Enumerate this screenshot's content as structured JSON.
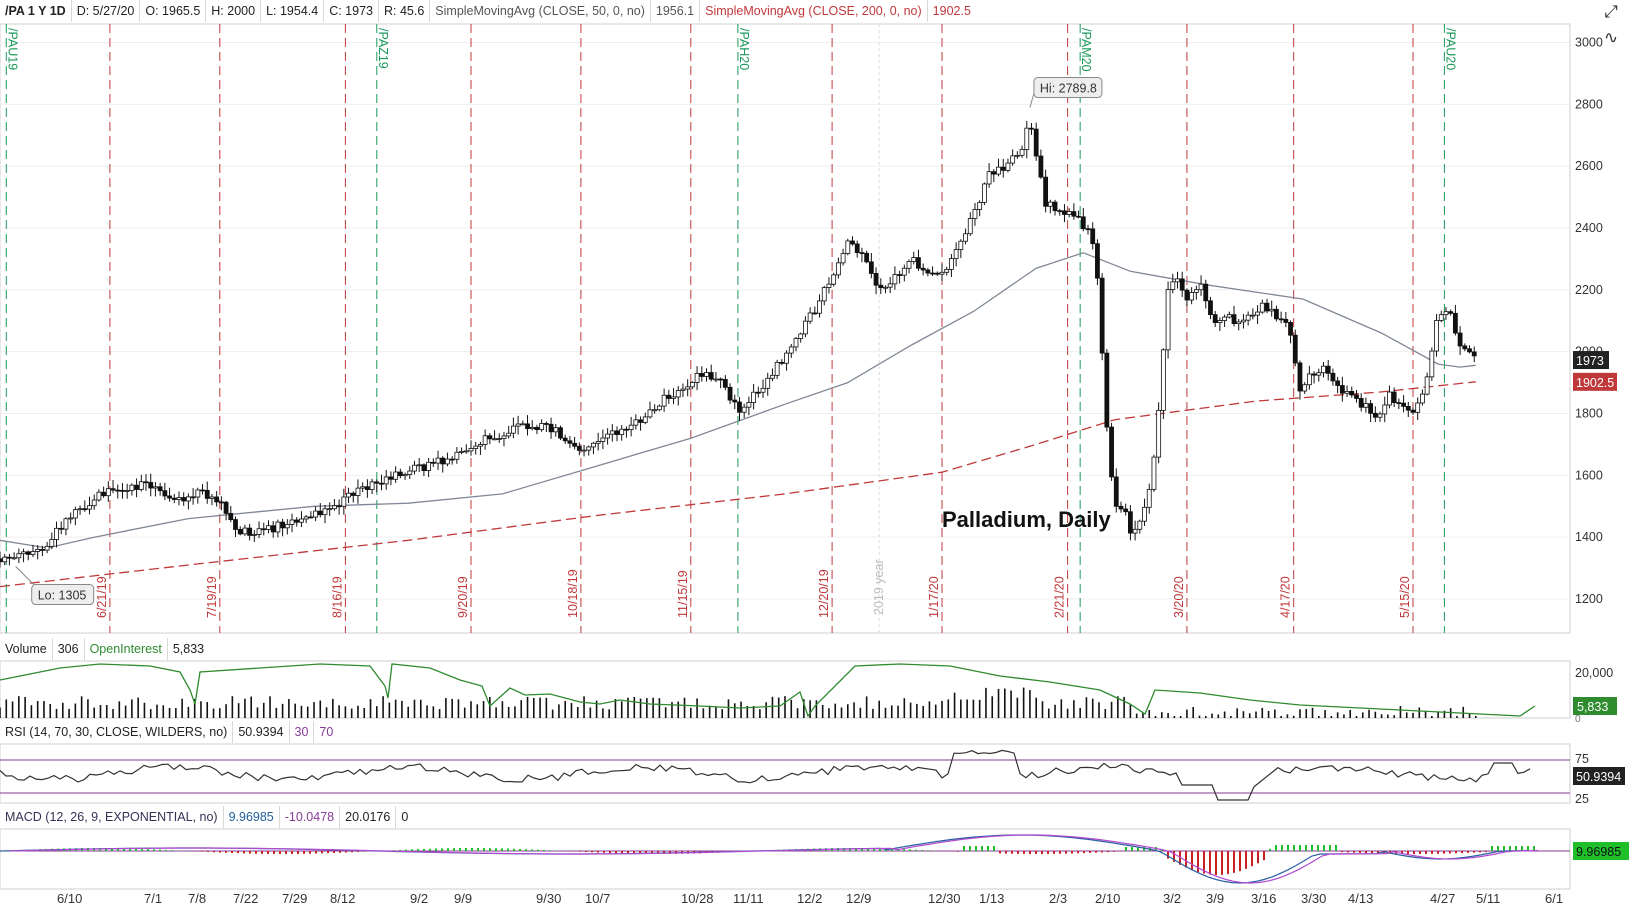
{
  "header": {
    "symbol": "/PA 1 Y 1D",
    "date": "D: 5/27/20",
    "open": "O: 1965.5",
    "high": "H: 2000",
    "low": "L: 1954.4",
    "close": "C: 1973",
    "range": "R: 45.6",
    "sma50_label": "SimpleMovingAvg (CLOSE, 50, 0, no)",
    "sma50_value": "1956.1",
    "sma200_label": "SimpleMovingAvg (CLOSE, 200, 0, no)",
    "sma200_value": "1902.5"
  },
  "icons": {
    "top": "expand-icon",
    "second": "drawing-tool-icon"
  },
  "colors": {
    "candle": "#111111",
    "sma50": "#808896",
    "sma200": "#c0383a",
    "expiry_line": "#1a9a5a",
    "month_line": "#c0383a",
    "open_interest": "#2e8b2e",
    "rsi_line": "#333333",
    "rsi_bands": "#8a3a9a",
    "macd_up": "#1fbf2a",
    "macd_down": "#c62020"
  },
  "chart_data": [
    {
      "type": "candlestick",
      "title": "Palladium, Daily",
      "yticks": [
        1200,
        1400,
        1600,
        1800,
        2000,
        2200,
        2400,
        2600,
        2800,
        3000
      ],
      "ylim": [
        1090,
        3060
      ],
      "xticks": [
        "6/10",
        "7/1",
        "7/8",
        "7/22",
        "7/29",
        "8/12",
        "9/2",
        "9/9",
        "9/30",
        "10/7",
        "10/28",
        "11/11",
        "12/2",
        "12/9",
        "12/30",
        "1/13",
        "2/3",
        "2/10",
        "3/2",
        "3/9",
        "3/16",
        "3/30",
        "4/13",
        "4/27",
        "5/11",
        "6/1"
      ],
      "close_path": [
        [
          0,
          1330
        ],
        [
          10,
          1345
        ],
        [
          15,
          1375
        ],
        [
          20,
          1440
        ],
        [
          25,
          1485
        ],
        [
          30,
          1525
        ],
        [
          35,
          1545
        ],
        [
          40,
          1560
        ],
        [
          45,
          1570
        ],
        [
          50,
          1555
        ],
        [
          55,
          1535
        ],
        [
          60,
          1530
        ],
        [
          65,
          1545
        ],
        [
          70,
          1510
        ],
        [
          75,
          1430
        ],
        [
          80,
          1405
        ],
        [
          85,
          1420
        ],
        [
          90,
          1440
        ],
        [
          95,
          1460
        ],
        [
          100,
          1475
        ],
        [
          105,
          1480
        ],
        [
          110,
          1535
        ],
        [
          115,
          1560
        ],
        [
          120,
          1580
        ],
        [
          125,
          1600
        ],
        [
          130,
          1615
        ],
        [
          135,
          1630
        ],
        [
          140,
          1645
        ],
        [
          145,
          1670
        ],
        [
          150,
          1690
        ],
        [
          155,
          1720
        ],
        [
          160,
          1735
        ],
        [
          165,
          1765
        ],
        [
          170,
          1760
        ],
        [
          175,
          1755
        ],
        [
          180,
          1720
        ],
        [
          185,
          1665
        ],
        [
          190,
          1705
        ],
        [
          195,
          1735
        ],
        [
          200,
          1755
        ],
        [
          205,
          1790
        ],
        [
          210,
          1835
        ],
        [
          215,
          1870
        ],
        [
          220,
          1905
        ],
        [
          225,
          1930
        ],
        [
          230,
          1900
        ],
        [
          235,
          1810
        ],
        [
          240,
          1855
        ],
        [
          245,
          1920
        ],
        [
          250,
          1985
        ],
        [
          255,
          2060
        ],
        [
          260,
          2145
        ],
        [
          265,
          2250
        ],
        [
          270,
          2360
        ],
        [
          275,
          2305
        ],
        [
          280,
          2190
        ],
        [
          285,
          2240
        ],
        [
          290,
          2300
        ],
        [
          295,
          2265
        ],
        [
          300,
          2255
        ],
        [
          305,
          2330
        ],
        [
          310,
          2440
        ],
        [
          315,
          2570
        ],
        [
          320,
          2600
        ],
        [
          325,
          2650
        ],
        [
          328,
          2740
        ],
        [
          330,
          2640
        ],
        [
          333,
          2480
        ],
        [
          338,
          2460
        ],
        [
          343,
          2440
        ],
        [
          348,
          2360
        ],
        [
          350,
          2180
        ],
        [
          352,
          1800
        ],
        [
          355,
          1480
        ],
        [
          358,
          1510
        ],
        [
          360,
          1420
        ],
        [
          363,
          1450
        ],
        [
          366,
          1540
        ],
        [
          369,
          1800
        ],
        [
          372,
          2200
        ],
        [
          375,
          2240
        ],
        [
          378,
          2160
        ],
        [
          382,
          2220
        ],
        [
          386,
          2100
        ],
        [
          390,
          2120
        ],
        [
          394,
          2080
        ],
        [
          398,
          2110
        ],
        [
          402,
          2150
        ],
        [
          406,
          2120
        ],
        [
          410,
          2100
        ],
        [
          414,
          1880
        ],
        [
          418,
          1930
        ],
        [
          422,
          1960
        ],
        [
          426,
          1880
        ],
        [
          430,
          1850
        ],
        [
          434,
          1830
        ],
        [
          438,
          1780
        ],
        [
          442,
          1860
        ],
        [
          446,
          1830
        ],
        [
          450,
          1800
        ],
        [
          454,
          1880
        ],
        [
          458,
          2130
        ],
        [
          462,
          2120
        ],
        [
          466,
          2000
        ],
        [
          470,
          1973
        ]
      ],
      "hi_label": "Hi: 2789.8",
      "lo_label": "Lo: 1305",
      "hi_day": 328,
      "lo_day": 5,
      "price_badge": "1973",
      "sma_badge": "1902.5",
      "sma200_path": [
        [
          0,
          1240
        ],
        [
          60,
          1310
        ],
        [
          130,
          1390
        ],
        [
          190,
          1470
        ],
        [
          250,
          1540
        ],
        [
          300,
          1610
        ],
        [
          330,
          1700
        ],
        [
          355,
          1780
        ],
        [
          400,
          1840
        ],
        [
          440,
          1870
        ],
        [
          470,
          1902.5
        ]
      ],
      "sma50_path": [
        [
          0,
          1390
        ],
        [
          15,
          1365
        ],
        [
          30,
          1400
        ],
        [
          60,
          1460
        ],
        [
          100,
          1500
        ],
        [
          130,
          1510
        ],
        [
          160,
          1540
        ],
        [
          190,
          1630
        ],
        [
          220,
          1720
        ],
        [
          250,
          1830
        ],
        [
          270,
          1900
        ],
        [
          290,
          2020
        ],
        [
          310,
          2130
        ],
        [
          330,
          2270
        ],
        [
          345,
          2320
        ],
        [
          360,
          2260
        ],
        [
          385,
          2215
        ],
        [
          415,
          2170
        ],
        [
          440,
          2060
        ],
        [
          458,
          1960
        ],
        [
          465,
          1950
        ],
        [
          470,
          1956.1
        ]
      ],
      "month_markers": [
        "6/21/19",
        "7/19/19",
        "8/16/19",
        "9/20/19",
        "10/18/19",
        "11/15/19",
        "12/20/19",
        "1/17/20",
        "2/21/20",
        "3/20/20",
        "4/17/20",
        "5/15/20"
      ],
      "month_days": [
        35,
        70,
        110,
        150,
        185,
        220,
        265,
        300,
        340,
        378,
        412,
        450
      ],
      "expiry_markers": [
        "/PAU19",
        "/PAZ19",
        "/PAH20",
        "/PAM20",
        "/PAU20"
      ],
      "expiry_days": [
        2,
        120,
        235,
        344,
        460
      ],
      "year_marker": "2019 year",
      "year_day": 280
    },
    {
      "type": "bar",
      "title": "Volume",
      "volume_value": "306",
      "series_name": "OpenInterest",
      "oi_value": "5,833",
      "yticks": [
        "20,000",
        "5,833",
        "0"
      ]
    },
    {
      "type": "line",
      "title": "RSI (14, 70, 30, CLOSE, WILDERS, no)",
      "rsi_value": "50.9394",
      "lower": "30",
      "upper": "70",
      "yticks": [
        "75",
        "25"
      ]
    },
    {
      "type": "bar",
      "title": "MACD (12, 26, 9, EXPONENTIAL, no)",
      "macd_value": "9.96985",
      "signal_value": "-10.0478",
      "diff_value": "20.0176",
      "zero": "0",
      "badge": "9.96985"
    }
  ]
}
